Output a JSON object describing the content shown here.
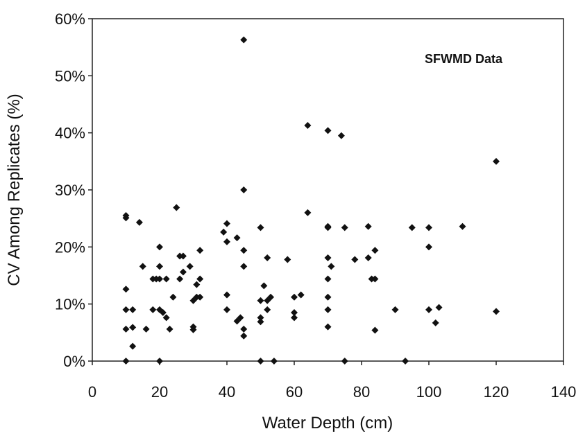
{
  "chart_data": {
    "type": "scatter",
    "title": "",
    "annotation": "SFWMD Data",
    "xlabel": "Water Depth (cm)",
    "ylabel": "CV Among Replicates (%)",
    "xlim": [
      0,
      140
    ],
    "ylim": [
      0,
      60
    ],
    "x_ticks": [
      0,
      20,
      40,
      60,
      80,
      100,
      120,
      140
    ],
    "x_tick_labels": [
      "0",
      "20",
      "40",
      "60",
      "80",
      "100",
      "120",
      "140"
    ],
    "y_ticks": [
      0,
      10,
      20,
      30,
      40,
      50,
      60
    ],
    "y_tick_labels": [
      "0%",
      "10%",
      "20%",
      "30%",
      "40%",
      "50%",
      "60%"
    ],
    "grid": false,
    "marker": "diamond",
    "marker_color": "#111111",
    "series": [
      {
        "points": [
          [
            10,
            25.5
          ],
          [
            10,
            25.1
          ],
          [
            10,
            12.6
          ],
          [
            10,
            9.0
          ],
          [
            10,
            5.6
          ],
          [
            10,
            0
          ],
          [
            12,
            9.0
          ],
          [
            12,
            5.9
          ],
          [
            12,
            2.6
          ],
          [
            14,
            24.3
          ],
          [
            15,
            16.6
          ],
          [
            16,
            5.6
          ],
          [
            18,
            14.4
          ],
          [
            18,
            9.0
          ],
          [
            19,
            14.4
          ],
          [
            20,
            20.0
          ],
          [
            20,
            16.6
          ],
          [
            20,
            14.4
          ],
          [
            20,
            9.0
          ],
          [
            20,
            0
          ],
          [
            21,
            8.5
          ],
          [
            22,
            14.4
          ],
          [
            22,
            7.6
          ],
          [
            23,
            5.6
          ],
          [
            24,
            11.2
          ],
          [
            25,
            26.9
          ],
          [
            26,
            18.4
          ],
          [
            26,
            14.4
          ],
          [
            27,
            18.4
          ],
          [
            27,
            15.6
          ],
          [
            29,
            16.6
          ],
          [
            30,
            10.6
          ],
          [
            30,
            6.0
          ],
          [
            30,
            5.5
          ],
          [
            31,
            13.4
          ],
          [
            31,
            11.2
          ],
          [
            32,
            19.4
          ],
          [
            32,
            14.4
          ],
          [
            32,
            11.2
          ],
          [
            39,
            22.6
          ],
          [
            40,
            24.1
          ],
          [
            40,
            20.9
          ],
          [
            40,
            11.6
          ],
          [
            40,
            9.0
          ],
          [
            43,
            21.6
          ],
          [
            43,
            7.0
          ],
          [
            44,
            7.6
          ],
          [
            45,
            56.3
          ],
          [
            45,
            30.0
          ],
          [
            45,
            19.4
          ],
          [
            45,
            16.6
          ],
          [
            45,
            5.6
          ],
          [
            45,
            4.4
          ],
          [
            50,
            23.4
          ],
          [
            50,
            10.6
          ],
          [
            50,
            7.6
          ],
          [
            50,
            6.9
          ],
          [
            50,
            0
          ],
          [
            51,
            13.2
          ],
          [
            52,
            18.1
          ],
          [
            52,
            10.6
          ],
          [
            52,
            9.0
          ],
          [
            53,
            11.2
          ],
          [
            54,
            0
          ],
          [
            58,
            17.8
          ],
          [
            60,
            11.2
          ],
          [
            60,
            8.5
          ],
          [
            60,
            7.6
          ],
          [
            62,
            11.6
          ],
          [
            64,
            41.3
          ],
          [
            64,
            26.0
          ],
          [
            70,
            40.4
          ],
          [
            70,
            23.6
          ],
          [
            70,
            23.4
          ],
          [
            70,
            18.1
          ],
          [
            70,
            14.4
          ],
          [
            70,
            11.2
          ],
          [
            70,
            9.0
          ],
          [
            70,
            6.0
          ],
          [
            71,
            16.6
          ],
          [
            74,
            39.5
          ],
          [
            75,
            23.4
          ],
          [
            75,
            0
          ],
          [
            78,
            17.8
          ],
          [
            82,
            23.6
          ],
          [
            82,
            18.1
          ],
          [
            83,
            14.4
          ],
          [
            84,
            19.4
          ],
          [
            84,
            14.4
          ],
          [
            84,
            5.4
          ],
          [
            90,
            9.0
          ],
          [
            93,
            0
          ],
          [
            95,
            23.4
          ],
          [
            100,
            23.4
          ],
          [
            100,
            20.0
          ],
          [
            100,
            9.0
          ],
          [
            102,
            6.7
          ],
          [
            103,
            9.4
          ],
          [
            110,
            23.6
          ],
          [
            120,
            35.0
          ],
          [
            120,
            8.7
          ]
        ]
      }
    ]
  }
}
